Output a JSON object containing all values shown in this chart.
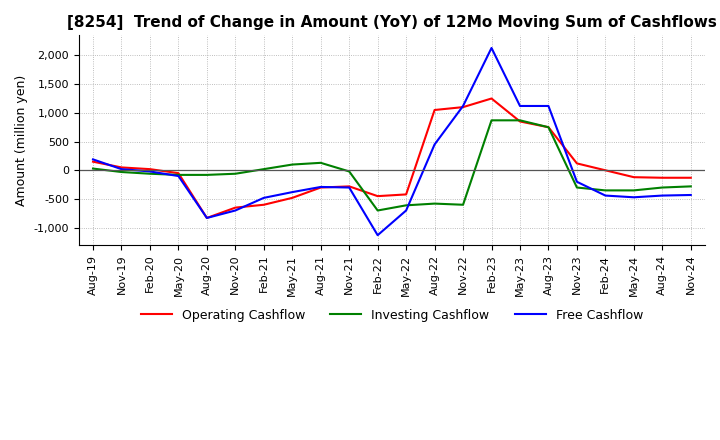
{
  "title": "[8254]  Trend of Change in Amount (YoY) of 12Mo Moving Sum of Cashflows",
  "ylabel": "Amount (million yen)",
  "x_labels": [
    "Aug-19",
    "Nov-19",
    "Feb-20",
    "May-20",
    "Aug-20",
    "Nov-20",
    "Feb-21",
    "May-21",
    "Aug-21",
    "Nov-21",
    "Feb-22",
    "May-22",
    "Aug-22",
    "Nov-22",
    "Feb-23",
    "May-23",
    "Aug-23",
    "Nov-23",
    "Feb-24",
    "May-24",
    "Aug-24",
    "Nov-24"
  ],
  "operating": [
    150,
    50,
    20,
    -50,
    -830,
    -650,
    -600,
    -480,
    -300,
    -280,
    -450,
    -420,
    1050,
    1100,
    1250,
    850,
    750,
    120,
    0,
    -120,
    -130,
    -130
  ],
  "investing": [
    30,
    -30,
    -60,
    -80,
    -80,
    -60,
    20,
    100,
    130,
    -20,
    -700,
    -610,
    -580,
    -600,
    870,
    870,
    750,
    -300,
    -350,
    -350,
    -300,
    -280
  ],
  "free": [
    190,
    20,
    -20,
    -100,
    -830,
    -700,
    -480,
    -380,
    -290,
    -300,
    -1130,
    -700,
    450,
    1120,
    2130,
    1120,
    1120,
    -200,
    -440,
    -470,
    -440,
    -430
  ],
  "ylim": [
    -1300,
    2350
  ],
  "yticks": [
    -1000,
    -500,
    0,
    500,
    1000,
    1500,
    2000
  ],
  "operating_color": "#ff0000",
  "investing_color": "#008000",
  "free_color": "#0000ff",
  "bg_color": "#ffffff",
  "grid_color": "#aaaaaa",
  "title_fontsize": 11,
  "label_fontsize": 9,
  "tick_fontsize": 8
}
